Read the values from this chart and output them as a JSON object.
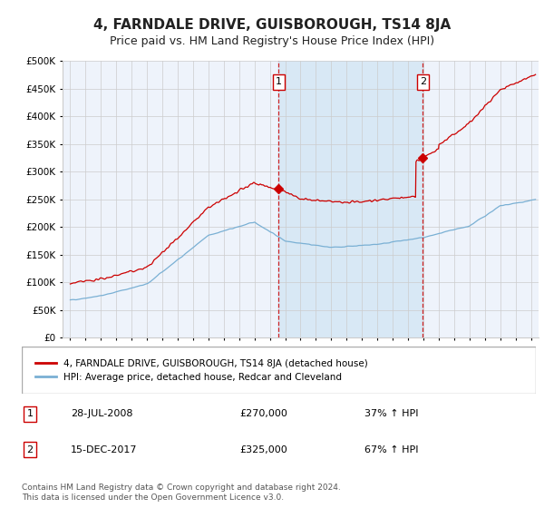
{
  "title": "4, FARNDALE DRIVE, GUISBOROUGH, TS14 8JA",
  "subtitle": "Price paid vs. HM Land Registry's House Price Index (HPI)",
  "title_fontsize": 11,
  "subtitle_fontsize": 9,
  "legend_line1": "4, FARNDALE DRIVE, GUISBOROUGH, TS14 8JA (detached house)",
  "legend_line2": "HPI: Average price, detached house, Redcar and Cleveland",
  "sale1_date": 2008.57,
  "sale1_price": 270000,
  "sale1_label": "1",
  "sale1_text": "28-JUL-2008",
  "sale1_price_str": "£270,000",
  "sale1_pct": "37% ↑ HPI",
  "sale2_date": 2017.96,
  "sale2_price": 325000,
  "sale2_label": "2",
  "sale2_text": "15-DEC-2017",
  "sale2_price_str": "£325,000",
  "sale2_pct": "67% ↑ HPI",
  "ylim": [
    0,
    500000
  ],
  "xlim_start": 1994.5,
  "xlim_end": 2025.5,
  "background_color": "#ffffff",
  "plot_bg_color": "#eef3fb",
  "shade_color": "#d8e8f5",
  "red_color": "#cc0000",
  "blue_color": "#7ab0d4",
  "grid_color": "#cccccc",
  "footnote": "Contains HM Land Registry data © Crown copyright and database right 2024.\nThis data is licensed under the Open Government Licence v3.0."
}
